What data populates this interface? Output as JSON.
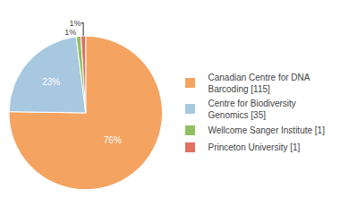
{
  "chart_data": {
    "type": "pie",
    "categories": [
      "Canadian Centre for DNA\nBarcoding [115]",
      "Centre for Biodiversity\nGenomics [35]",
      "Wellcome Sanger Institute [1]",
      "Princeton University [1]"
    ],
    "values": [
      76,
      23,
      1,
      1
    ],
    "value_labels": [
      "76%",
      "23%",
      "1%",
      "1%"
    ],
    "colors": [
      "#F4A460",
      "#A8C8E0",
      "#90C060",
      "#E07060"
    ],
    "data_labels": true,
    "legend": "right"
  }
}
